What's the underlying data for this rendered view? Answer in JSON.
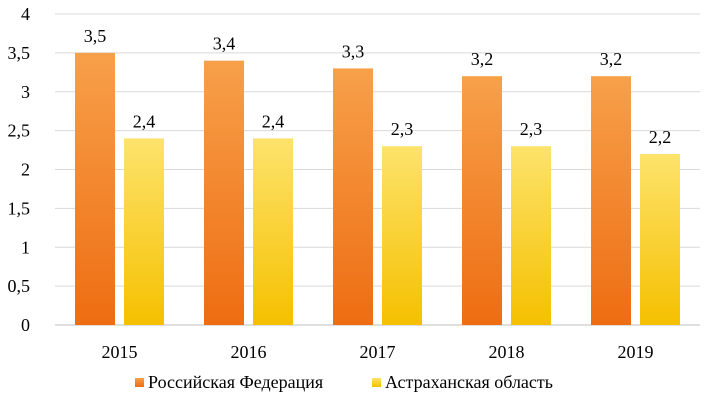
{
  "chart_data": {
    "type": "bar",
    "categories": [
      "2015",
      "2016",
      "2017",
      "2018",
      "2019"
    ],
    "series": [
      {
        "name": "Российская Федерация",
        "values": [
          3.5,
          3.4,
          3.3,
          3.2,
          3.2
        ],
        "labels": [
          "3,5",
          "3,4",
          "3,3",
          "3,2",
          "3,2"
        ],
        "color_top": "#f7a04a",
        "color_bottom": "#ee6d12"
      },
      {
        "name": "Астраханская область",
        "values": [
          2.4,
          2.4,
          2.3,
          2.3,
          2.2
        ],
        "labels": [
          "2,4",
          "2,4",
          "2,3",
          "2,3",
          "2,2"
        ],
        "color_top": "#fde36c",
        "color_bottom": "#f5c000"
      }
    ],
    "y_ticks": [
      0,
      0.5,
      1,
      1.5,
      2,
      2.5,
      3,
      3.5,
      4
    ],
    "y_tick_labels": [
      "0",
      "0,5",
      "1",
      "1,5",
      "2",
      "2,5",
      "3",
      "3,5",
      "4"
    ],
    "ylim": [
      0,
      4
    ],
    "grid": true,
    "legend_position": "bottom",
    "title": "",
    "xlabel": "",
    "ylabel": ""
  }
}
